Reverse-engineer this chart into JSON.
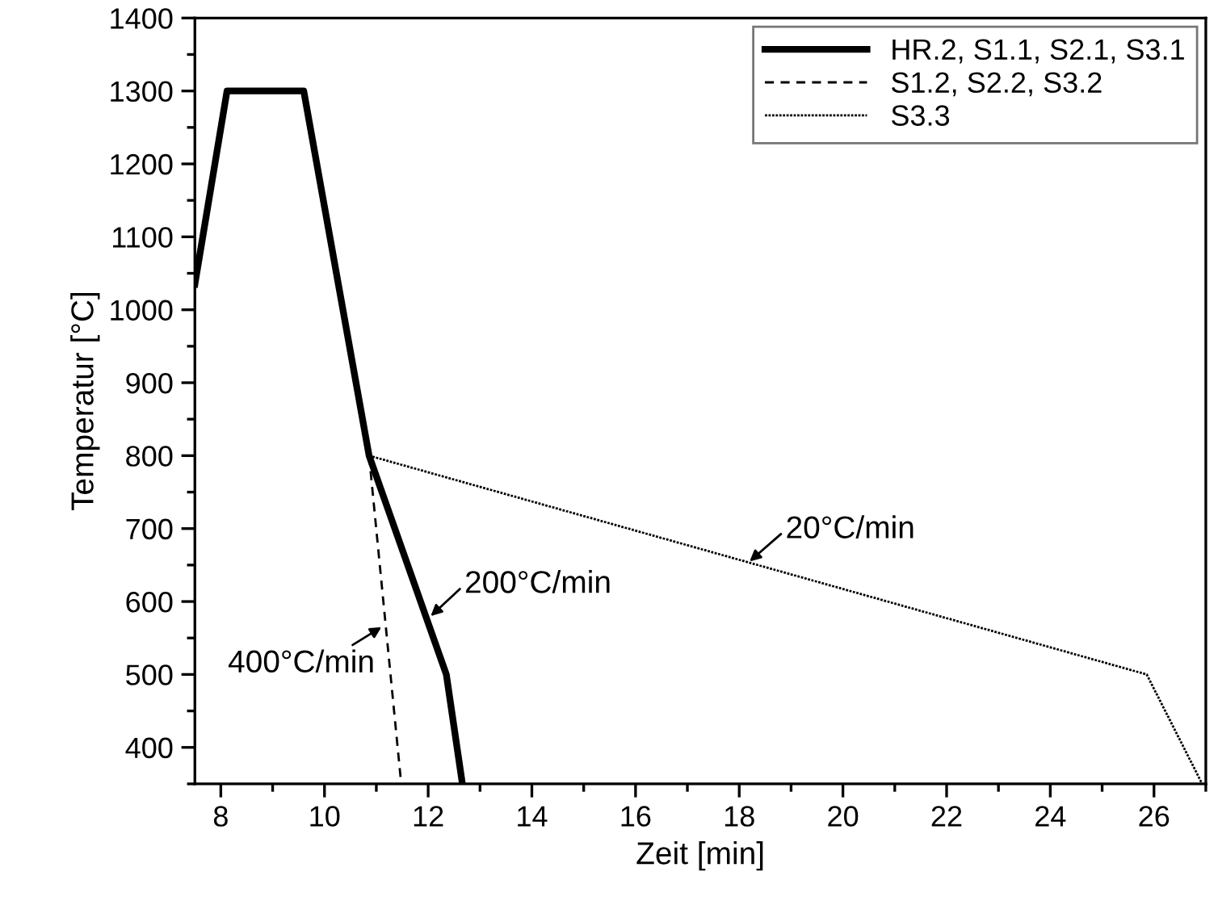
{
  "chart_data": {
    "type": "line",
    "xlabel": "Zeit [min]",
    "ylabel": "Temperatur [°C]",
    "xlim": [
      7.5,
      27
    ],
    "xticks": [
      8,
      10,
      12,
      14,
      16,
      18,
      20,
      22,
      24,
      26
    ],
    "ylim": [
      350,
      1400
    ],
    "yticks": [
      400,
      500,
      600,
      700,
      800,
      900,
      1000,
      1100,
      1200,
      1300,
      1400
    ],
    "grid": false,
    "legend": "top right",
    "marker": "none",
    "series": [
      {
        "name": "HR.2, S1.1, S2.1, S3.1",
        "color": "#000000",
        "line_style": "solid",
        "x": [
          7.5,
          8.12,
          9.6,
          10.86,
          12.35,
          12.66
        ],
        "values": [
          1035,
          1300,
          1300,
          800,
          500,
          350
        ]
      },
      {
        "name": "S1.2, S2.2, S3.2",
        "color": "#000000",
        "line_style": "dashed",
        "x": [
          10.86,
          11.48
        ],
        "values": [
          800,
          350
        ]
      },
      {
        "name": "S3.3",
        "color": "#000000",
        "line_style": "dotted",
        "x": [
          10.86,
          25.86,
          26.93
        ],
        "values": [
          800,
          500,
          350
        ]
      }
    ],
    "annotations": [
      {
        "text": "400°C/min",
        "x": 11.1,
        "y": 565
      },
      {
        "text": "200°C/min",
        "x": 12.05,
        "y": 580
      },
      {
        "text": "20°C/min",
        "x": 18.2,
        "y": 655
      }
    ]
  }
}
